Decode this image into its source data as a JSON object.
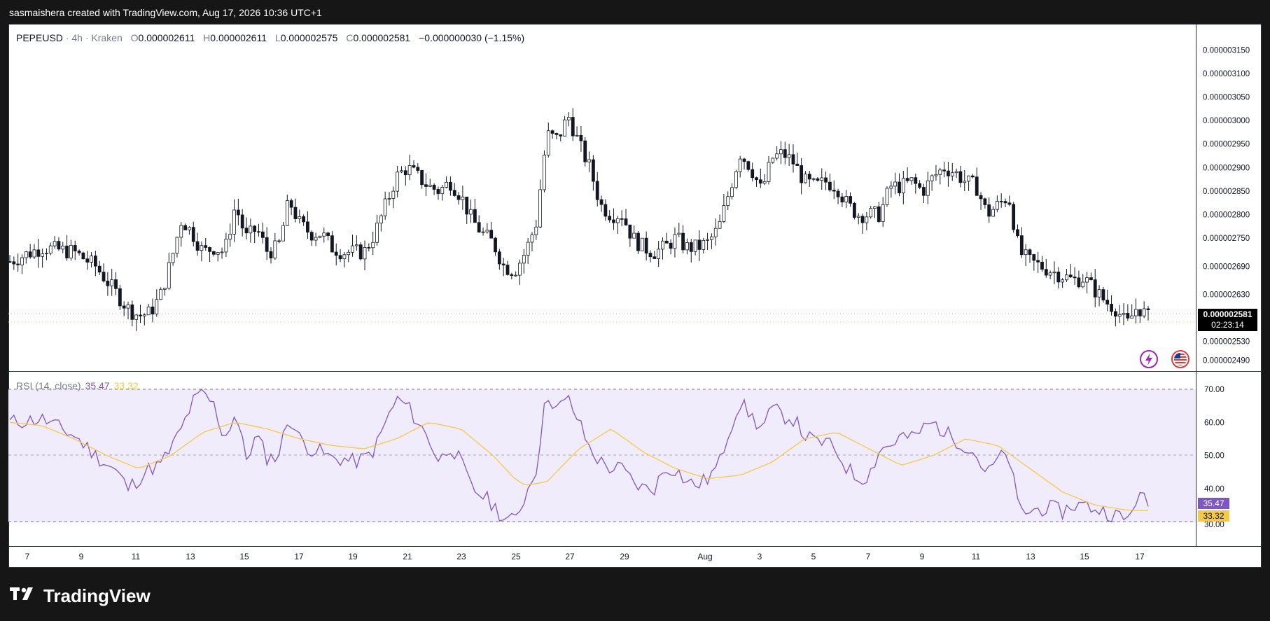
{
  "header": {
    "attribution": "sasmaishera created with TradingView.com, Aug 17, 2026 10:36 UTC+1"
  },
  "legend": {
    "symbol": "PEPEUSD",
    "interval": "4h",
    "exchange": "Kraken",
    "open_label": "O",
    "open": "0.000002611",
    "high_label": "H",
    "high": "0.000002611",
    "low_label": "L",
    "low": "0.000002575",
    "close_label": "C",
    "close": "0.000002581",
    "change": "−0.000000030 (−1.15%)"
  },
  "rsi_legend": {
    "label": "RSI (14, close)",
    "rsi_value": "35.47",
    "ma_value": "33.32"
  },
  "badges": {
    "last_price": "0.000002581",
    "countdown": "02:23:14",
    "rsi": "35.47",
    "rsi_ma": "33.32"
  },
  "brand": {
    "name": "TradingView"
  },
  "colors": {
    "rsi_line": "#7e57c2",
    "rsi_ma": "#f2c94c",
    "rsi_band": "#f1ecfb",
    "price_line": "#f2c94c",
    "candle": "#131722"
  },
  "icons": [
    "lightning-icon",
    "us-flag-icon",
    "tradingview-logo-icon"
  ],
  "chart_data": [
    {
      "type": "candlestick",
      "interval": "4h",
      "y_ticks": [
        "0.000003150",
        "0.000003100",
        "0.000003050",
        "0.000003000",
        "0.000002950",
        "0.000002900",
        "0.000002850",
        "0.000002800",
        "0.000002750",
        "0.000002690",
        "0.000002630",
        "0.000002530",
        "0.000002490"
      ],
      "ylim": [
        2.47e-06,
        3.17e-06
      ],
      "x_ticks": [
        "7",
        "9",
        "11",
        "13",
        "15",
        "17",
        "19",
        "21",
        "23",
        "25",
        "27",
        "29",
        "Aug",
        "3",
        "5",
        "7",
        "9",
        "11",
        "13",
        "15",
        "17"
      ],
      "last_price": 2.581e-06,
      "close_path": [
        [
          0,
          2.7
        ],
        [
          3,
          2.73
        ],
        [
          6,
          2.72
        ],
        [
          8,
          2.69
        ],
        [
          10,
          2.63
        ],
        [
          11,
          2.6
        ],
        [
          12,
          2.585
        ],
        [
          13,
          2.59
        ],
        [
          14,
          2.625
        ],
        [
          15,
          2.7
        ],
        [
          16,
          2.79
        ],
        [
          17,
          2.76
        ],
        [
          18,
          2.72
        ],
        [
          19,
          2.73
        ],
        [
          20,
          2.72
        ],
        [
          21,
          2.82
        ],
        [
          22,
          2.75
        ],
        [
          23,
          2.77
        ],
        [
          24,
          2.72
        ],
        [
          25,
          2.73
        ],
        [
          26,
          2.83
        ],
        [
          27,
          2.78
        ],
        [
          28,
          2.76
        ],
        [
          29,
          2.76
        ],
        [
          30,
          2.73
        ],
        [
          31,
          2.72
        ],
        [
          32,
          2.72
        ],
        [
          33,
          2.72
        ],
        [
          34,
          2.76
        ],
        [
          35,
          2.82
        ],
        [
          36,
          2.88
        ],
        [
          37,
          2.9
        ],
        [
          38,
          2.88
        ],
        [
          39,
          2.86
        ],
        [
          40,
          2.85
        ],
        [
          41,
          2.87
        ],
        [
          42,
          2.84
        ],
        [
          43,
          2.79
        ],
        [
          44,
          2.76
        ],
        [
          45,
          2.74
        ],
        [
          46,
          2.69
        ],
        [
          47,
          2.68
        ],
        [
          48,
          2.72
        ],
        [
          49,
          2.78
        ],
        [
          50,
          2.97
        ],
        [
          51,
          2.96
        ],
        [
          52,
          3.01
        ],
        [
          53,
          2.95
        ],
        [
          54,
          2.9
        ],
        [
          55,
          2.82
        ],
        [
          56,
          2.8
        ],
        [
          57,
          2.8
        ],
        [
          58,
          2.75
        ],
        [
          59,
          2.73
        ],
        [
          60,
          2.72
        ],
        [
          61,
          2.73
        ],
        [
          62,
          2.75
        ],
        [
          63,
          2.73
        ],
        [
          64,
          2.73
        ],
        [
          65,
          2.74
        ],
        [
          66,
          2.77
        ],
        [
          67,
          2.85
        ],
        [
          68,
          2.93
        ],
        [
          69,
          2.9
        ],
        [
          70,
          2.85
        ],
        [
          71,
          2.92
        ],
        [
          72,
          2.93
        ],
        [
          73,
          2.91
        ],
        [
          74,
          2.87
        ],
        [
          75,
          2.86
        ],
        [
          76,
          2.87
        ],
        [
          77,
          2.86
        ],
        [
          78,
          2.82
        ],
        [
          79,
          2.8
        ],
        [
          80,
          2.8
        ],
        [
          81,
          2.8
        ],
        [
          82,
          2.86
        ],
        [
          83,
          2.86
        ],
        [
          84,
          2.87
        ],
        [
          85,
          2.85
        ],
        [
          86,
          2.88
        ],
        [
          87,
          2.9
        ],
        [
          88,
          2.89
        ],
        [
          89,
          2.87
        ],
        [
          90,
          2.86
        ],
        [
          91,
          2.8
        ],
        [
          92,
          2.82
        ],
        [
          93,
          2.84
        ],
        [
          94,
          2.72
        ],
        [
          95,
          2.7
        ],
        [
          96,
          2.69
        ],
        [
          97,
          2.68
        ],
        [
          98,
          2.67
        ],
        [
          99,
          2.66
        ],
        [
          100,
          2.665
        ],
        [
          101,
          2.64
        ],
        [
          102,
          2.615
        ],
        [
          103,
          2.6
        ],
        [
          104,
          2.565
        ],
        [
          105,
          2.605
        ],
        [
          106,
          2.581
        ]
      ]
    },
    {
      "type": "line",
      "title": "RSI (14, close)",
      "y_ticks": [
        "70.00",
        "60.00",
        "50.00",
        "40.00",
        "30.00"
      ],
      "ylim": [
        27,
        71.5
      ],
      "bands": [
        30,
        50,
        70
      ],
      "series": [
        {
          "name": "RSI",
          "color": "#7e57c2",
          "values": [
            [
              0,
              60
            ],
            [
              3,
              61
            ],
            [
              6,
              56
            ],
            [
              8,
              50
            ],
            [
              10,
              45
            ],
            [
              11,
              40
            ],
            [
              12,
              43
            ],
            [
              13,
              46
            ],
            [
              14,
              47
            ],
            [
              15,
              52
            ],
            [
              16,
              58
            ],
            [
              17,
              66
            ],
            [
              18,
              69
            ],
            [
              19,
              65
            ],
            [
              20,
              55
            ],
            [
              21,
              63
            ],
            [
              22,
              49
            ],
            [
              23,
              56
            ],
            [
              24,
              49
            ],
            [
              25,
              50
            ],
            [
              26,
              62
            ],
            [
              27,
              55
            ],
            [
              28,
              52
            ],
            [
              29,
              51
            ],
            [
              30,
              49
            ],
            [
              31,
              49
            ],
            [
              32,
              48
            ],
            [
              33,
              49
            ],
            [
              34,
              52
            ],
            [
              35,
              60
            ],
            [
              36,
              67
            ],
            [
              37,
              65
            ],
            [
              38,
              60
            ],
            [
              39,
              55
            ],
            [
              40,
              48
            ],
            [
              41,
              53
            ],
            [
              42,
              48
            ],
            [
              43,
              40
            ],
            [
              44,
              38
            ],
            [
              45,
              35
            ],
            [
              46,
              31
            ],
            [
              47,
              30
            ],
            [
              48,
              38
            ],
            [
              49,
              46
            ],
            [
              50,
              69
            ],
            [
              51,
              64
            ],
            [
              52,
              67
            ],
            [
              53,
              60
            ],
            [
              54,
              52
            ],
            [
              55,
              48
            ],
            [
              56,
              46
            ],
            [
              57,
              46
            ],
            [
              58,
              42
            ],
            [
              59,
              40
            ],
            [
              60,
              40
            ],
            [
              61,
              46
            ],
            [
              62,
              46
            ],
            [
              63,
              42
            ],
            [
              64,
              41
            ],
            [
              65,
              43
            ],
            [
              66,
              47
            ],
            [
              67,
              58
            ],
            [
              68,
              66
            ],
            [
              69,
              62
            ],
            [
              70,
              58
            ],
            [
              71,
              64
            ],
            [
              72,
              62
            ],
            [
              73,
              61
            ],
            [
              74,
              56
            ],
            [
              75,
              54
            ],
            [
              76,
              54
            ],
            [
              77,
              51
            ],
            [
              78,
              46
            ],
            [
              79,
              43
            ],
            [
              80,
              44
            ],
            [
              81,
              52
            ],
            [
              82,
              53
            ],
            [
              83,
              56
            ],
            [
              84,
              55
            ],
            [
              85,
              58
            ],
            [
              86,
              60
            ],
            [
              87,
              57
            ],
            [
              88,
              55
            ],
            [
              89,
              53
            ],
            [
              90,
              50
            ],
            [
              91,
              44
            ],
            [
              92,
              49
            ],
            [
              93,
              50
            ],
            [
              94,
              33
            ],
            [
              95,
              33
            ],
            [
              96,
              34
            ],
            [
              97,
              34
            ],
            [
              98,
              33
            ],
            [
              99,
              35
            ],
            [
              100,
              35
            ],
            [
              101,
              34
            ],
            [
              102,
              33
            ],
            [
              103,
              32
            ],
            [
              104,
              30
            ],
            [
              105,
              38
            ],
            [
              106,
              35.47
            ]
          ]
        },
        {
          "name": "RSI-based MA",
          "color": "#f2c94c",
          "values": [
            [
              0,
              60
            ],
            [
              3,
              59
            ],
            [
              6,
              55
            ],
            [
              9,
              50
            ],
            [
              12,
              46
            ],
            [
              15,
              50
            ],
            [
              18,
              57
            ],
            [
              21,
              60
            ],
            [
              24,
              58
            ],
            [
              27,
              55
            ],
            [
              30,
              53
            ],
            [
              33,
              52
            ],
            [
              36,
              55
            ],
            [
              39,
              60
            ],
            [
              42,
              58
            ],
            [
              45,
              50
            ],
            [
              47,
              43
            ],
            [
              48,
              41
            ],
            [
              50,
              42
            ],
            [
              53,
              52
            ],
            [
              56,
              58
            ],
            [
              59,
              51
            ],
            [
              62,
              46
            ],
            [
              65,
              43
            ],
            [
              68,
              44
            ],
            [
              71,
              48
            ],
            [
              74,
              55
            ],
            [
              77,
              57
            ],
            [
              80,
              52
            ],
            [
              83,
              47
            ],
            [
              86,
              50
            ],
            [
              89,
              55
            ],
            [
              92,
              53
            ],
            [
              95,
              46
            ],
            [
              98,
              39
            ],
            [
              101,
              35
            ],
            [
              104,
              33.5
            ],
            [
              106,
              33.32
            ]
          ]
        }
      ]
    }
  ]
}
